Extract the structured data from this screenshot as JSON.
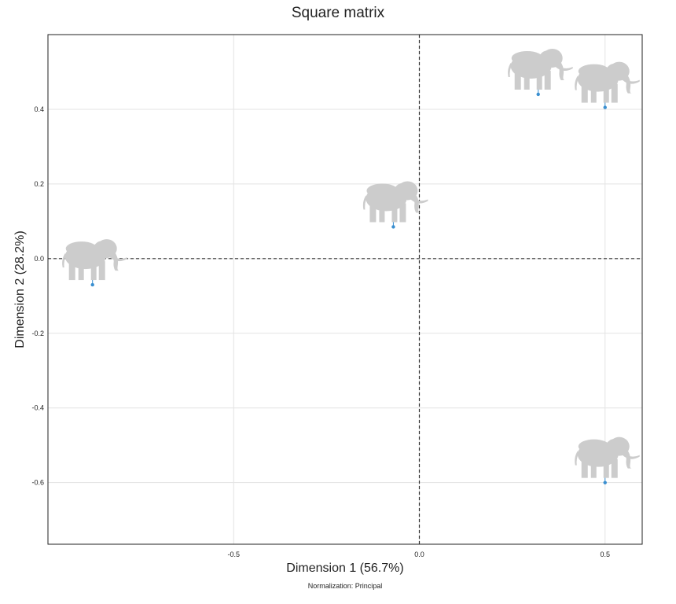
{
  "chart_data": {
    "type": "scatter",
    "title": "Square matrix",
    "xlabel": "Dimension 1 (56.7%)",
    "ylabel": "Dimension 2 (28.2%)",
    "footnote": "Normalization: Principal",
    "xlim": [
      -1.0,
      0.6
    ],
    "ylim": [
      -0.765,
      0.6
    ],
    "xticks": [
      -0.5,
      0.0,
      0.5
    ],
    "xtick_labels": [
      "-0.5",
      "0.0",
      "0.5"
    ],
    "yticks": [
      -0.6,
      -0.4,
      -0.2,
      0.0,
      0.2,
      0.4
    ],
    "ytick_labels": [
      "-0.6",
      "-0.4",
      "-0.2",
      "0.0",
      "0.2",
      "0.4"
    ],
    "reference_lines": {
      "x": 0,
      "y": 0,
      "style": "dashed"
    },
    "grid": true,
    "point_color": "#3a8fd0",
    "icon_color": "#cccccc",
    "icon": "elephant-icon",
    "points": [
      {
        "x": -0.88,
        "y": -0.07
      },
      {
        "x": -0.07,
        "y": 0.085
      },
      {
        "x": 0.32,
        "y": 0.44
      },
      {
        "x": 0.5,
        "y": 0.405
      },
      {
        "x": 0.5,
        "y": -0.6
      }
    ]
  }
}
